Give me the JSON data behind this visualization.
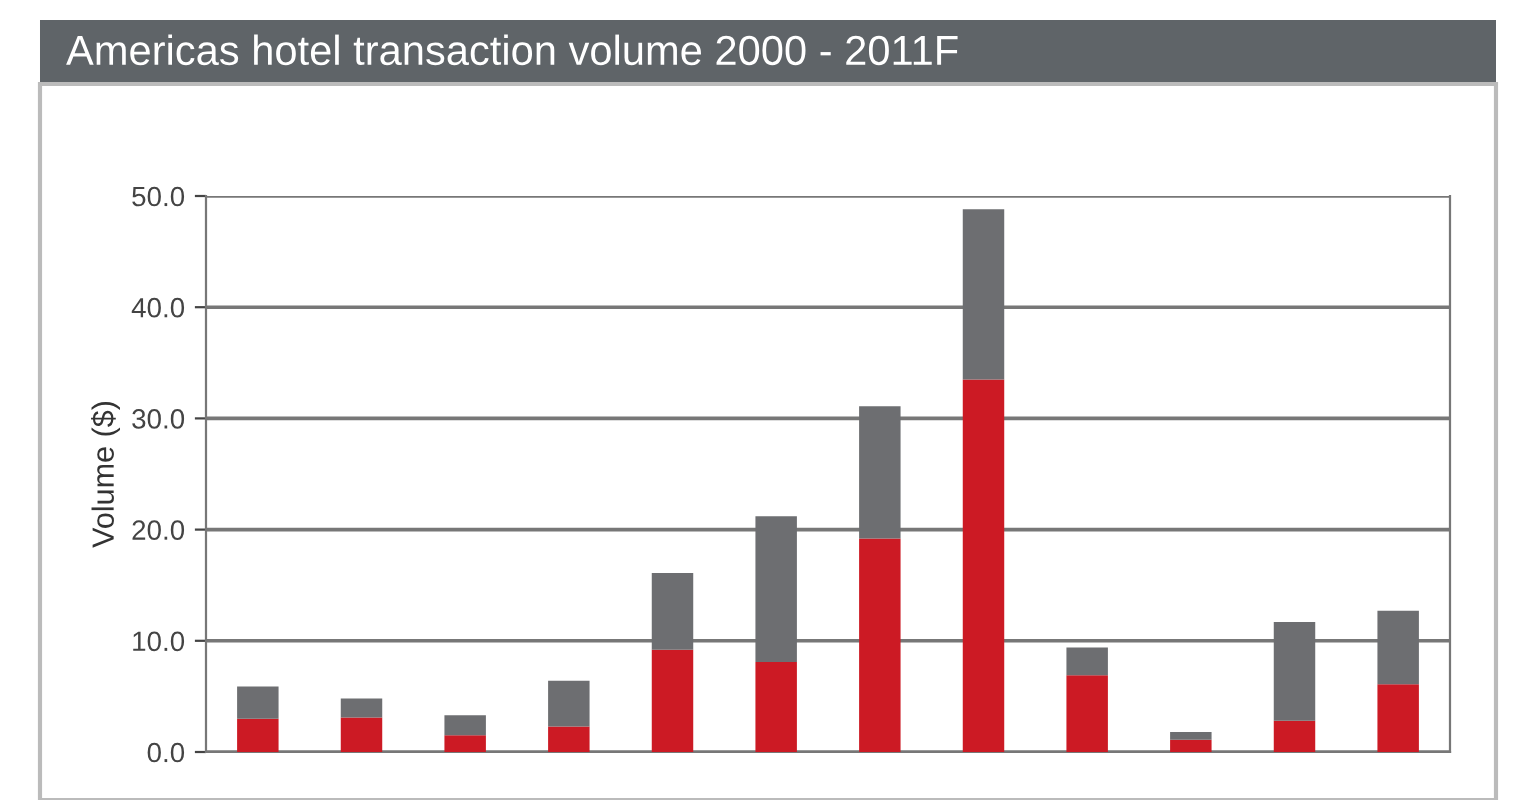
{
  "chart_data": {
    "type": "bar",
    "title": "Americas hotel transaction volume 2000 - 2011F",
    "ylabel": "Volume ($)",
    "categories": [
      null,
      null,
      null,
      null,
      null,
      null,
      null,
      null,
      null,
      null,
      null,
      null
    ],
    "stacked": true,
    "series": [
      {
        "color": "#cc1a24",
        "values": [
          3.0,
          3.1,
          1.5,
          2.3,
          9.2,
          8.1,
          19.2,
          33.5,
          6.9,
          1.1,
          2.8,
          6.1
        ]
      },
      {
        "color": "#6d6e71",
        "values": [
          2.9,
          1.7,
          1.8,
          4.1,
          6.9,
          13.1,
          11.9,
          15.3,
          2.5,
          0.7,
          8.9,
          6.6
        ]
      }
    ],
    "ylim": [
      0,
      50
    ],
    "yticks": [
      {
        "value": 0,
        "label": "0.0"
      },
      {
        "value": 10,
        "label": "10.0"
      },
      {
        "value": 20,
        "label": "20.0"
      },
      {
        "value": 30,
        "label": "30.0"
      },
      {
        "value": 40,
        "label": "40.0"
      },
      {
        "value": 50,
        "label": "50.0"
      }
    ],
    "grid": "y",
    "legend": false
  }
}
